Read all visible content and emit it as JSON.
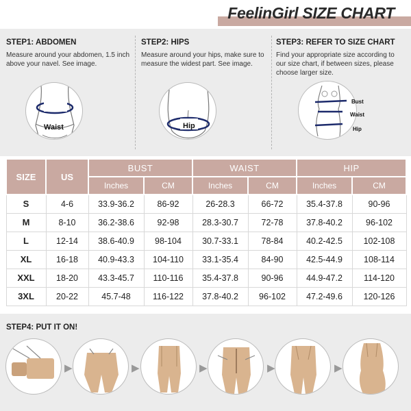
{
  "header": {
    "title": "FeelinGirl SIZE CHART"
  },
  "steps": [
    {
      "title": "STEP1: ABDOMEN",
      "text": "Measure around your abdomen, 1.5 inch above your navel. See image.",
      "label": "Waist"
    },
    {
      "title": "STEP2: HIPS",
      "text": "Measure around your hips, make sure to measure the widest part. See image.",
      "label": "Hip"
    },
    {
      "title": "STEP3: REFER TO SIZE CHART",
      "text": "Find your appropriate size according to our size chart, if between sizes, please choose larger size.",
      "labels": [
        "Bust",
        "Waist",
        "Hip"
      ]
    }
  ],
  "table": {
    "col_size": "SIZE",
    "col_us": "US",
    "groups": [
      "BUST",
      "WAIST",
      "HIP"
    ],
    "units": [
      "Inches",
      "CM"
    ],
    "rows": [
      {
        "size": "S",
        "us": "4-6",
        "bust_in": "33.9-36.2",
        "bust_cm": "86-92",
        "waist_in": "26-28.3",
        "waist_cm": "66-72",
        "hip_in": "35.4-37.8",
        "hip_cm": "90-96"
      },
      {
        "size": "M",
        "us": "8-10",
        "bust_in": "36.2-38.6",
        "bust_cm": "92-98",
        "waist_in": "28.3-30.7",
        "waist_cm": "72-78",
        "hip_in": "37.8-40.2",
        "hip_cm": "96-102"
      },
      {
        "size": "L",
        "us": "12-14",
        "bust_in": "38.6-40.9",
        "bust_cm": "98-104",
        "waist_in": "30.7-33.1",
        "waist_cm": "78-84",
        "hip_in": "40.2-42.5",
        "hip_cm": "102-108"
      },
      {
        "size": "XL",
        "us": "16-18",
        "bust_in": "40.9-43.3",
        "bust_cm": "104-110",
        "waist_in": "33.1-35.4",
        "waist_cm": "84-90",
        "hip_in": "42.5-44.9",
        "hip_cm": "108-114"
      },
      {
        "size": "XXL",
        "us": "18-20",
        "bust_in": "43.3-45.7",
        "bust_cm": "110-116",
        "waist_in": "35.4-37.8",
        "waist_cm": "90-96",
        "hip_in": "44.9-47.2",
        "hip_cm": "114-120"
      },
      {
        "size": "3XL",
        "us": "20-22",
        "bust_in": "45.7-48",
        "bust_cm": "116-122",
        "waist_in": "37.8-40.2",
        "waist_cm": "96-102",
        "hip_in": "47.2-49.6",
        "hip_cm": "120-126"
      }
    ]
  },
  "step4": {
    "title": "STEP4: PUT IT ON!"
  },
  "colors": {
    "accent": "#c9a9a1",
    "panel": "#ececec",
    "skin": "#d9b48f",
    "tape": "#1c2a6b"
  }
}
